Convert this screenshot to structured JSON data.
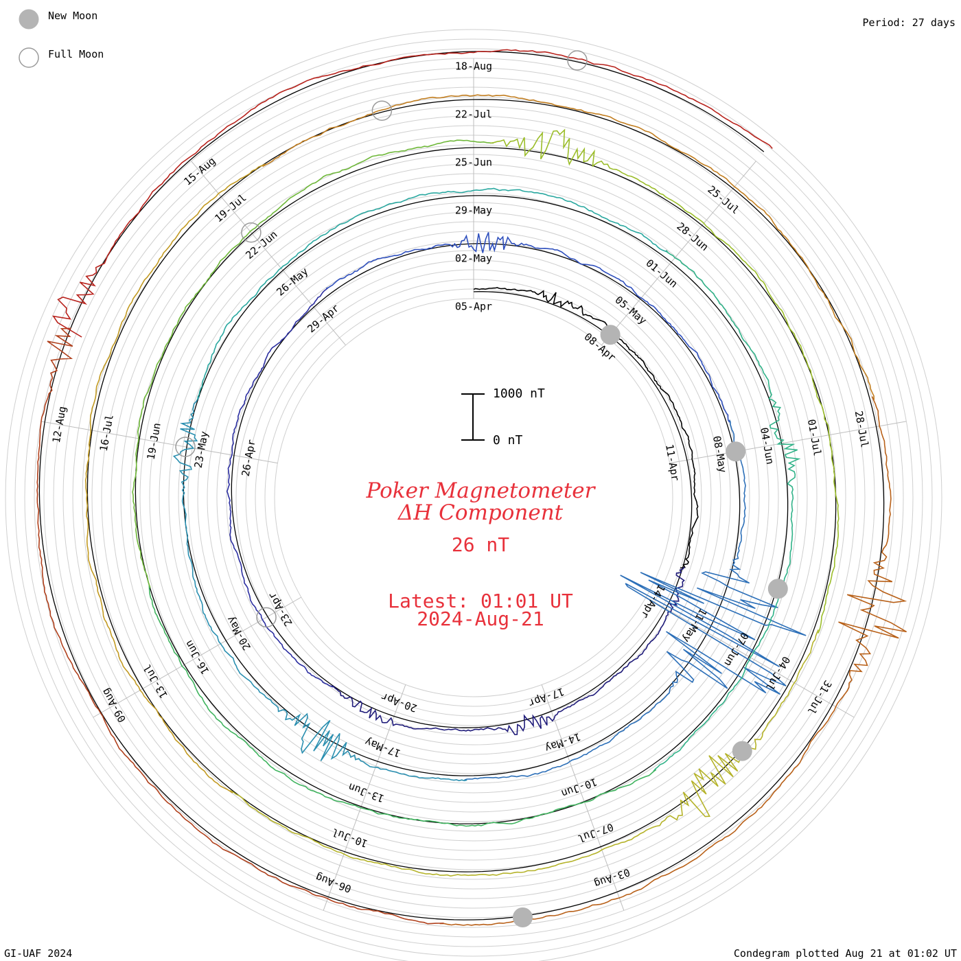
{
  "legend": {
    "new_moon_label": "New Moon",
    "full_moon_label": "Full Moon"
  },
  "period_label": "Period: 27 days",
  "footer_left": "GI-UAF 2024",
  "footer_right": "Condegram plotted Aug 21 at 01:02 UT",
  "title": {
    "line1": "Poker Magnetometer",
    "line2": "ΔH Component",
    "value": "26 nT",
    "latest": "Latest: 01:01 UT",
    "date": "2024-Aug-21"
  },
  "scale_bar": {
    "top_label": "1000 nT",
    "bottom_label": "0 nT"
  },
  "chart_data": {
    "type": "line",
    "subtype": "condegram-spiral",
    "period_days": 27,
    "start_date": "2024-04-05",
    "end_date": "2024-08-21",
    "series_colors": [
      "#000000",
      "#1f1b7a",
      "#2b2ea0",
      "#2e4fbd",
      "#2c6fb8",
      "#2a8fb0",
      "#2aa8a0",
      "#30b288",
      "#3fb35e",
      "#6fb83a",
      "#9bbd2a",
      "#b5b32a",
      "#c29a22",
      "#c27e20",
      "#b86018",
      "#b0401c",
      "#b8221c"
    ],
    "date_labels": [
      "05-Apr",
      "08-Apr",
      "11-Apr",
      "14-Apr",
      "17-Apr",
      "20-Apr",
      "23-Apr",
      "26-Apr",
      "29-Apr",
      "02-May",
      "05-May",
      "08-May",
      "11-May",
      "14-May",
      "17-May",
      "20-May",
      "23-May",
      "26-May",
      "29-May",
      "01-Jun",
      "04-Jun",
      "07-Jun",
      "10-Jun",
      "13-Jun",
      "16-Jun",
      "19-Jun",
      "22-Jun",
      "25-Jun",
      "28-Jun",
      "01-Jul",
      "04-Jul",
      "07-Jul",
      "10-Jul",
      "13-Jul",
      "16-Jul",
      "19-Jul",
      "22-Jul",
      "25-Jul",
      "28-Jul",
      "31-Jul",
      "03-Aug",
      "06-Aug",
      "09-Aug",
      "12-Aug",
      "15-Aug",
      "18-Aug"
    ],
    "new_moons": [
      "2024-04-08",
      "2024-05-08",
      "2024-06-06",
      "2024-07-05",
      "2024-08-04"
    ],
    "full_moons": [
      "2024-04-23",
      "2024-05-23",
      "2024-06-22",
      "2024-07-21",
      "2024-08-19"
    ],
    "disturbances": [
      {
        "day": 1.8,
        "amp": 180
      },
      {
        "day": 8.5,
        "amp": 140
      },
      {
        "day": 12.5,
        "amp": 220
      },
      {
        "day": 15.5,
        "amp": 200
      },
      {
        "day": 27.2,
        "amp": 260
      },
      {
        "day": 35.6,
        "amp": 2300
      },
      {
        "day": 36.2,
        "amp": 1600
      },
      {
        "day": 43.0,
        "amp": 520
      },
      {
        "day": 48.0,
        "amp": 300
      },
      {
        "day": 60.0,
        "amp": 360
      },
      {
        "day": 82.0,
        "amp": 460
      },
      {
        "day": 91.5,
        "amp": 620
      },
      {
        "day": 116.0,
        "amp": 900
      },
      {
        "day": 130.0,
        "amp": 500
      }
    ]
  }
}
